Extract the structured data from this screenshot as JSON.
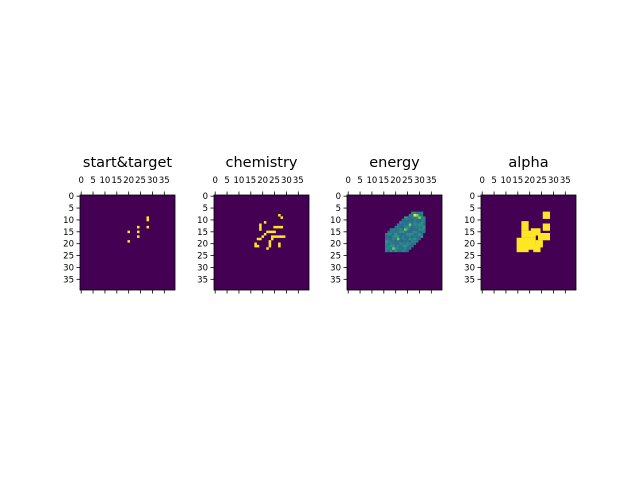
{
  "chart_data": [
    {
      "type": "heatmap",
      "title": "start&target",
      "grid_size": 40,
      "xticks": [
        0,
        5,
        10,
        15,
        20,
        25,
        30,
        35
      ],
      "yticks": [
        0,
        5,
        10,
        15,
        20,
        25,
        30,
        35
      ],
      "xtick_position": "top",
      "colormap": "viridis",
      "value_range": [
        0,
        1
      ],
      "cells": [
        [
          28,
          9
        ],
        [
          28,
          10
        ],
        [
          24,
          13
        ],
        [
          28,
          13
        ],
        [
          20,
          15
        ],
        [
          24,
          15
        ],
        [
          24,
          17
        ],
        [
          20,
          19
        ]
      ]
    },
    {
      "type": "heatmap",
      "title": "chemistry",
      "grid_size": 40,
      "xticks": [
        0,
        5,
        10,
        15,
        20,
        25,
        30,
        35
      ],
      "yticks": [
        0,
        5,
        10,
        15,
        20,
        25,
        30,
        35
      ],
      "xtick_position": "top",
      "colormap": "viridis",
      "value_range": [
        0,
        1
      ],
      "cells": [
        [
          27,
          8
        ],
        [
          28,
          9
        ],
        [
          21,
          11
        ],
        [
          19,
          12
        ],
        [
          19,
          13
        ],
        [
          19,
          14
        ],
        [
          25,
          13
        ],
        [
          26,
          13
        ],
        [
          27,
          13
        ],
        [
          28,
          13
        ],
        [
          22,
          15
        ],
        [
          23,
          15
        ],
        [
          24,
          15
        ],
        [
          25,
          15
        ],
        [
          21,
          16
        ],
        [
          20,
          17
        ],
        [
          24,
          17
        ],
        [
          25,
          17
        ],
        [
          26,
          17
        ],
        [
          27,
          17
        ],
        [
          28,
          17
        ],
        [
          29,
          17
        ],
        [
          18,
          18
        ],
        [
          19,
          18
        ],
        [
          24,
          18
        ],
        [
          23,
          19
        ],
        [
          23,
          20
        ],
        [
          27,
          20
        ],
        [
          17,
          20
        ],
        [
          17,
          21
        ],
        [
          18,
          21
        ],
        [
          23,
          21
        ],
        [
          27,
          21
        ],
        [
          22,
          22
        ]
      ]
    },
    {
      "type": "heatmap",
      "title": "energy",
      "grid_size": 40,
      "xticks": [
        0,
        5,
        10,
        15,
        20,
        25,
        30,
        35
      ],
      "yticks": [
        0,
        5,
        10,
        15,
        20,
        25,
        30,
        35
      ],
      "xtick_position": "top",
      "colormap": "viridis",
      "value_range": [
        0,
        1
      ],
      "rows": [
        {
          "y": 7,
          "x0": 27,
          "x1": 31
        },
        {
          "y": 8,
          "x0": 26,
          "x1": 31
        },
        {
          "y": 9,
          "x0": 24,
          "x1": 32
        },
        {
          "y": 10,
          "x0": 23,
          "x1": 32
        },
        {
          "y": 11,
          "x0": 22,
          "x1": 32
        },
        {
          "y": 12,
          "x0": 21,
          "x1": 32
        },
        {
          "y": 13,
          "x0": 20,
          "x1": 32
        },
        {
          "y": 14,
          "x0": 18,
          "x1": 32
        },
        {
          "y": 15,
          "x0": 17,
          "x1": 32
        },
        {
          "y": 16,
          "x0": 16,
          "x1": 31
        },
        {
          "y": 17,
          "x0": 16,
          "x1": 31
        },
        {
          "y": 18,
          "x0": 16,
          "x1": 30
        },
        {
          "y": 19,
          "x0": 16,
          "x1": 29
        },
        {
          "y": 20,
          "x0": 16,
          "x1": 28
        },
        {
          "y": 21,
          "x0": 16,
          "x1": 27
        },
        {
          "y": 22,
          "x0": 16,
          "x1": 26
        },
        {
          "y": 23,
          "x0": 16,
          "x1": 25
        }
      ],
      "highlights": [
        {
          "x": 28,
          "y": 8,
          "value": 0.95
        },
        {
          "x": 29,
          "y": 8,
          "value": 0.8
        },
        {
          "x": 30,
          "y": 9,
          "value": 0.7
        },
        {
          "x": 24,
          "y": 14,
          "value": 0.6
        },
        {
          "x": 21,
          "y": 18,
          "value": 0.55
        },
        {
          "x": 19,
          "y": 22,
          "value": 0.6
        },
        {
          "x": 26,
          "y": 12,
          "value": 0.55
        }
      ]
    },
    {
      "type": "heatmap",
      "title": "alpha",
      "grid_size": 40,
      "xticks": [
        0,
        5,
        10,
        15,
        20,
        25,
        30,
        35
      ],
      "yticks": [
        0,
        5,
        10,
        15,
        20,
        25,
        30,
        35
      ],
      "xtick_position": "top",
      "colormap": "viridis",
      "value_range": [
        0,
        1
      ],
      "rects": [
        {
          "x": 26,
          "y": 7,
          "w": 3,
          "h": 3
        },
        {
          "x": 17,
          "y": 11,
          "w": 3,
          "h": 4
        },
        {
          "x": 21,
          "y": 14,
          "w": 4,
          "h": 3
        },
        {
          "x": 26,
          "y": 12,
          "w": 3,
          "h": 3
        },
        {
          "x": 17,
          "y": 15,
          "w": 6,
          "h": 3
        },
        {
          "x": 24,
          "y": 16,
          "w": 5,
          "h": 3
        },
        {
          "x": 15,
          "y": 18,
          "w": 5,
          "h": 6
        },
        {
          "x": 20,
          "y": 18,
          "w": 3,
          "h": 3
        },
        {
          "x": 23,
          "y": 19,
          "w": 3,
          "h": 3
        },
        {
          "x": 19,
          "y": 21,
          "w": 4,
          "h": 2
        },
        {
          "x": 22,
          "y": 21,
          "w": 3,
          "h": 3
        }
      ]
    }
  ],
  "colors": {
    "background_cell": "#440154",
    "high": "#fde725",
    "energy_low": "#31688e",
    "energy_mid": "#26828e",
    "energy_high": "#35b779",
    "energy_peak": "#a0da39"
  }
}
